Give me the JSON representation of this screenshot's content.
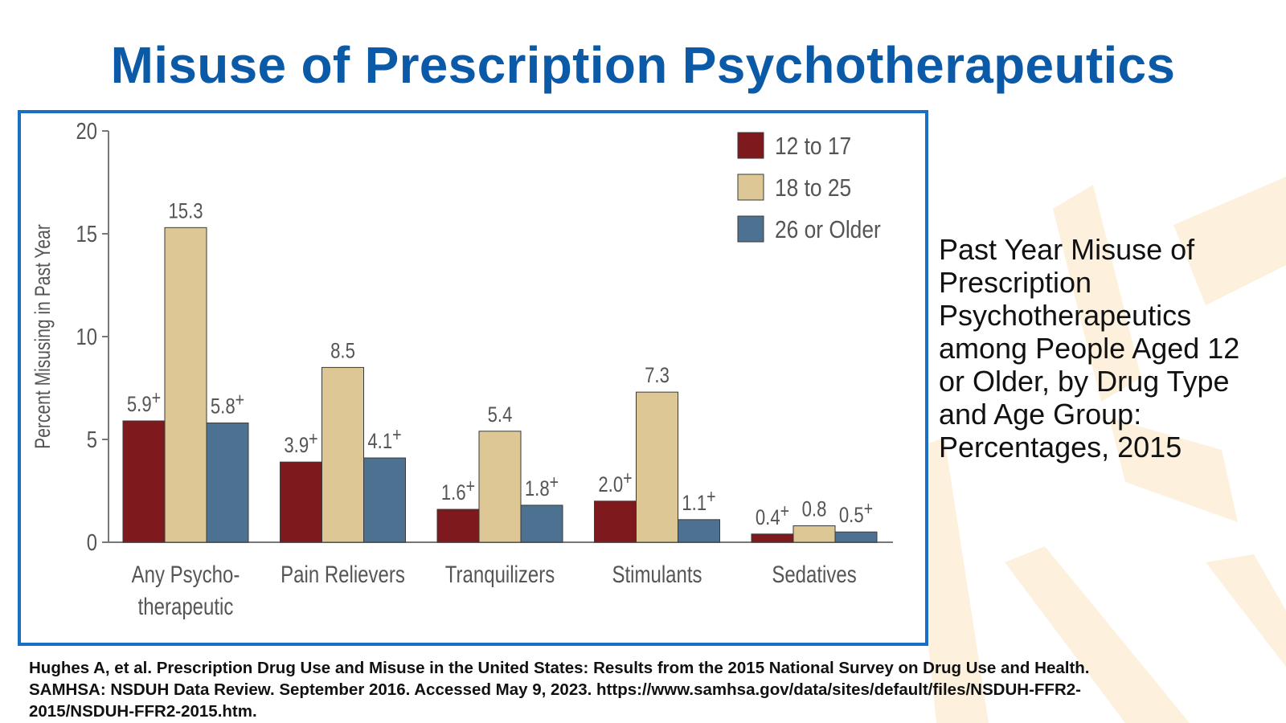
{
  "slide": {
    "title": "Misuse of Prescription Psychotherapeutics",
    "caption_lines": [
      "Past Year Misuse of",
      "Prescription",
      "Psychotherapeutics",
      "among People Aged 12",
      "or Older, by Drug Type",
      "and Age Group:",
      "Percentages, 2015"
    ],
    "reference_lines": [
      "Hughes A, et al. Prescription Drug Use and Misuse in the United States: Results from the 2015 National Survey on Drug Use and Health.",
      "SAMHSA: NSDUH Data Review. September 2016. Accessed May 9, 2023. https://www.samhsa.gov/data/sites/default/files/NSDUH-FFR2-",
      "2015/NSDUH-FFR2-2015.htm."
    ],
    "colors": {
      "title": "#0b5aa8",
      "frame": "#1a6fc4",
      "decoration": "#fdf0dd"
    }
  },
  "chart_data": {
    "type": "bar",
    "title": "",
    "xlabel": "",
    "ylabel": "Percent Misusing in Past Year",
    "ylim": [
      0,
      20
    ],
    "yticks": [
      0,
      5,
      10,
      15,
      20
    ],
    "grid": false,
    "legend_position": "top-right",
    "categories": [
      [
        "Any Psycho-",
        "therapeutic"
      ],
      [
        "Pain Relievers"
      ],
      [
        "Tranquilizers"
      ],
      [
        "Stimulants"
      ],
      [
        "Sedatives"
      ]
    ],
    "series": [
      {
        "name": "12 to 17",
        "color": "#7e1a1e",
        "values": [
          5.9,
          3.9,
          1.6,
          2.0,
          0.4
        ],
        "labels": [
          "5.9",
          "3.9",
          "1.6",
          "2.0",
          "0.4"
        ],
        "marked": [
          true,
          true,
          true,
          true,
          true
        ]
      },
      {
        "name": "18 to 25",
        "color": "#dcc795",
        "values": [
          15.3,
          8.5,
          5.4,
          7.3,
          0.8
        ],
        "labels": [
          "15.3",
          "8.5",
          "5.4",
          "7.3",
          "0.8"
        ],
        "marked": [
          false,
          false,
          false,
          false,
          false
        ]
      },
      {
        "name": "26 or Older",
        "color": "#4d7191",
        "values": [
          5.8,
          4.1,
          1.8,
          1.1,
          0.5
        ],
        "labels": [
          "5.8",
          "4.1",
          "1.8",
          "1.1",
          "0.5"
        ],
        "marked": [
          true,
          true,
          true,
          true,
          true
        ]
      }
    ],
    "significance_marker": "+"
  }
}
